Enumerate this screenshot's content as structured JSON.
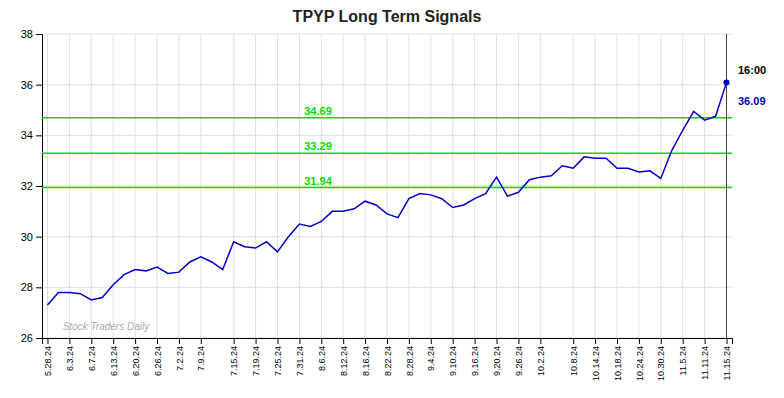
{
  "chart_data": {
    "type": "line",
    "title": "TPYP Long Term Signals",
    "categories": [
      "5.28.24",
      null,
      "6.3.24",
      null,
      "6.7.24",
      null,
      "6.13.24",
      null,
      "6.20.24",
      null,
      "6.26.24",
      null,
      "7.2.24",
      null,
      "7.9.24",
      null,
      null,
      "7.15.24",
      null,
      "7.19.24",
      null,
      "7.25.24",
      null,
      "7.31.24",
      null,
      "8.6.24",
      null,
      "8.12.24",
      null,
      "8.16.24",
      null,
      "8.22.24",
      null,
      "8.28.24",
      null,
      "9.4.24",
      null,
      "9.10.24",
      null,
      "9.16.24",
      null,
      "9.20.24",
      null,
      "9.26.24",
      null,
      "10.2.24",
      null,
      null,
      "10.8.24",
      null,
      "10.14.24",
      null,
      "10.18.24",
      null,
      "10.24.24",
      null,
      "10.30.24",
      null,
      "11.5.24",
      null,
      "11.11.24",
      null,
      "11.15.24"
    ],
    "values": [
      27.3,
      27.8,
      27.8,
      27.75,
      27.5,
      27.6,
      28.1,
      28.5,
      28.7,
      28.65,
      28.8,
      28.55,
      28.6,
      29.0,
      29.2,
      29.0,
      28.7,
      29.8,
      29.6,
      29.55,
      29.8,
      29.4,
      30.0,
      30.5,
      30.4,
      30.6,
      31.0,
      31.0,
      31.1,
      31.4,
      31.25,
      30.9,
      30.75,
      31.5,
      31.7,
      31.65,
      31.5,
      31.15,
      31.25,
      31.5,
      31.7,
      32.35,
      31.6,
      31.75,
      32.25,
      32.35,
      32.4,
      32.8,
      32.7,
      33.15,
      33.1,
      33.1,
      32.7,
      32.7,
      32.55,
      32.6,
      32.3,
      33.4,
      34.2,
      34.95,
      34.6,
      34.75,
      36.09
    ],
    "color": "#0000cc",
    "ylim": [
      26,
      38
    ],
    "yticks": [
      26,
      28,
      30,
      32,
      34,
      36,
      38
    ],
    "grid": true,
    "reference_lines": [
      {
        "y": 31.94,
        "label": "31.94",
        "color": "#00dd00"
      },
      {
        "y": 33.29,
        "label": "33.29",
        "color": "#00dd00"
      },
      {
        "y": 34.69,
        "label": "34.69",
        "color": "#00dd00"
      }
    ],
    "annotations": [
      {
        "text": "16:00",
        "color": "#000000"
      },
      {
        "text": "36.09",
        "color": "#0000cc"
      }
    ],
    "watermark": {
      "text": "Stock Traders Daily",
      "color": "#aaaaaa"
    }
  }
}
